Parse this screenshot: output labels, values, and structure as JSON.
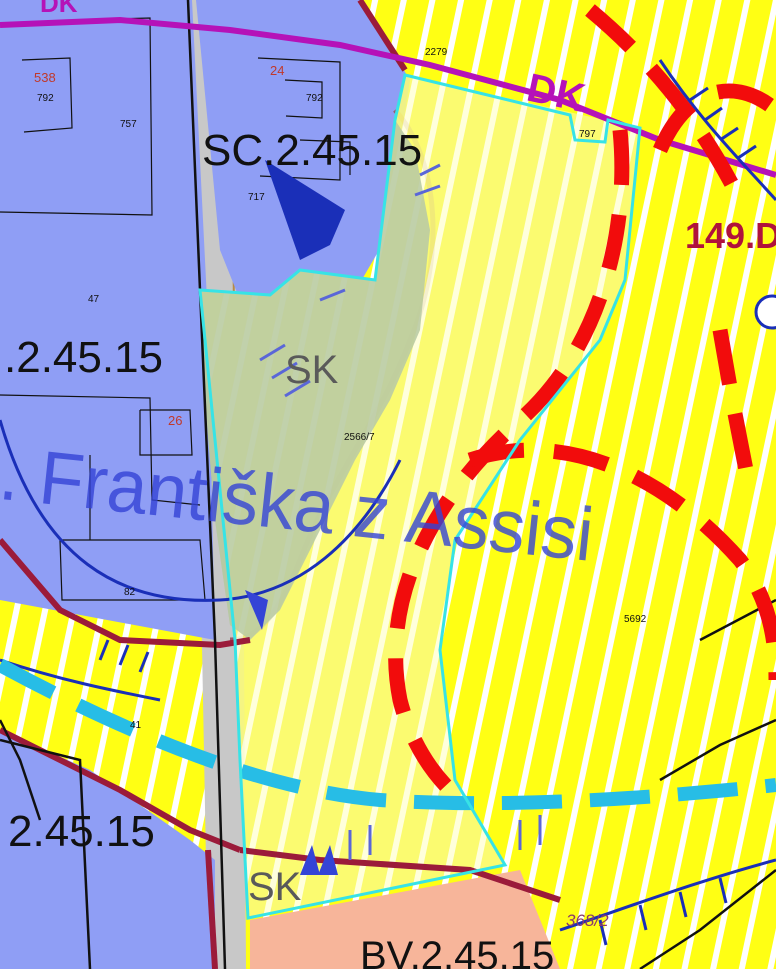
{
  "map": {
    "labels": {
      "zone_sc_top": "SC.2.45.15",
      "zone_sc_left": ".2.45.15",
      "zone_sc_bottom": "2.45.15",
      "zone_bv_bottom": "BV.2.45.15",
      "zone_sk_center": "SK",
      "zone_sk_bottom": "SK",
      "corridor_dk": "DK",
      "corridor_dk_top": "DK",
      "route_149": "149.D",
      "street_name": ". Františka z Assisi",
      "parcel_368_2": "368/2",
      "parcel_538": "538",
      "parcel_24": "24",
      "parcel_26": "26",
      "parcel_2279": "2279",
      "parcel_792_a": "792",
      "parcel_792_b": "792",
      "parcel_797": "797",
      "parcel_757": "757",
      "parcel_717": "717",
      "parcel_2566": "2566/7",
      "parcel_5692": "5692",
      "parcel_41": "41",
      "parcel_47": "47",
      "parcel_82": "82"
    },
    "colors": {
      "zone_residential": "#8f9ef5",
      "zone_yellow": "#ffff14",
      "zone_green": "#b7c9a3",
      "zone_salmon": "#f7b59a",
      "zone_grey": "#c8c8c8",
      "outline_cyan": "#37e3e6",
      "dash_red": "#f20c0c",
      "dash_light_blue": "#27bde6",
      "boundary_maroon": "#9b1b3a",
      "line_magenta": "#b512b8",
      "line_navy": "#1a2fb8",
      "text_street": "#3444d6",
      "text_route": "#b0123c"
    }
  }
}
